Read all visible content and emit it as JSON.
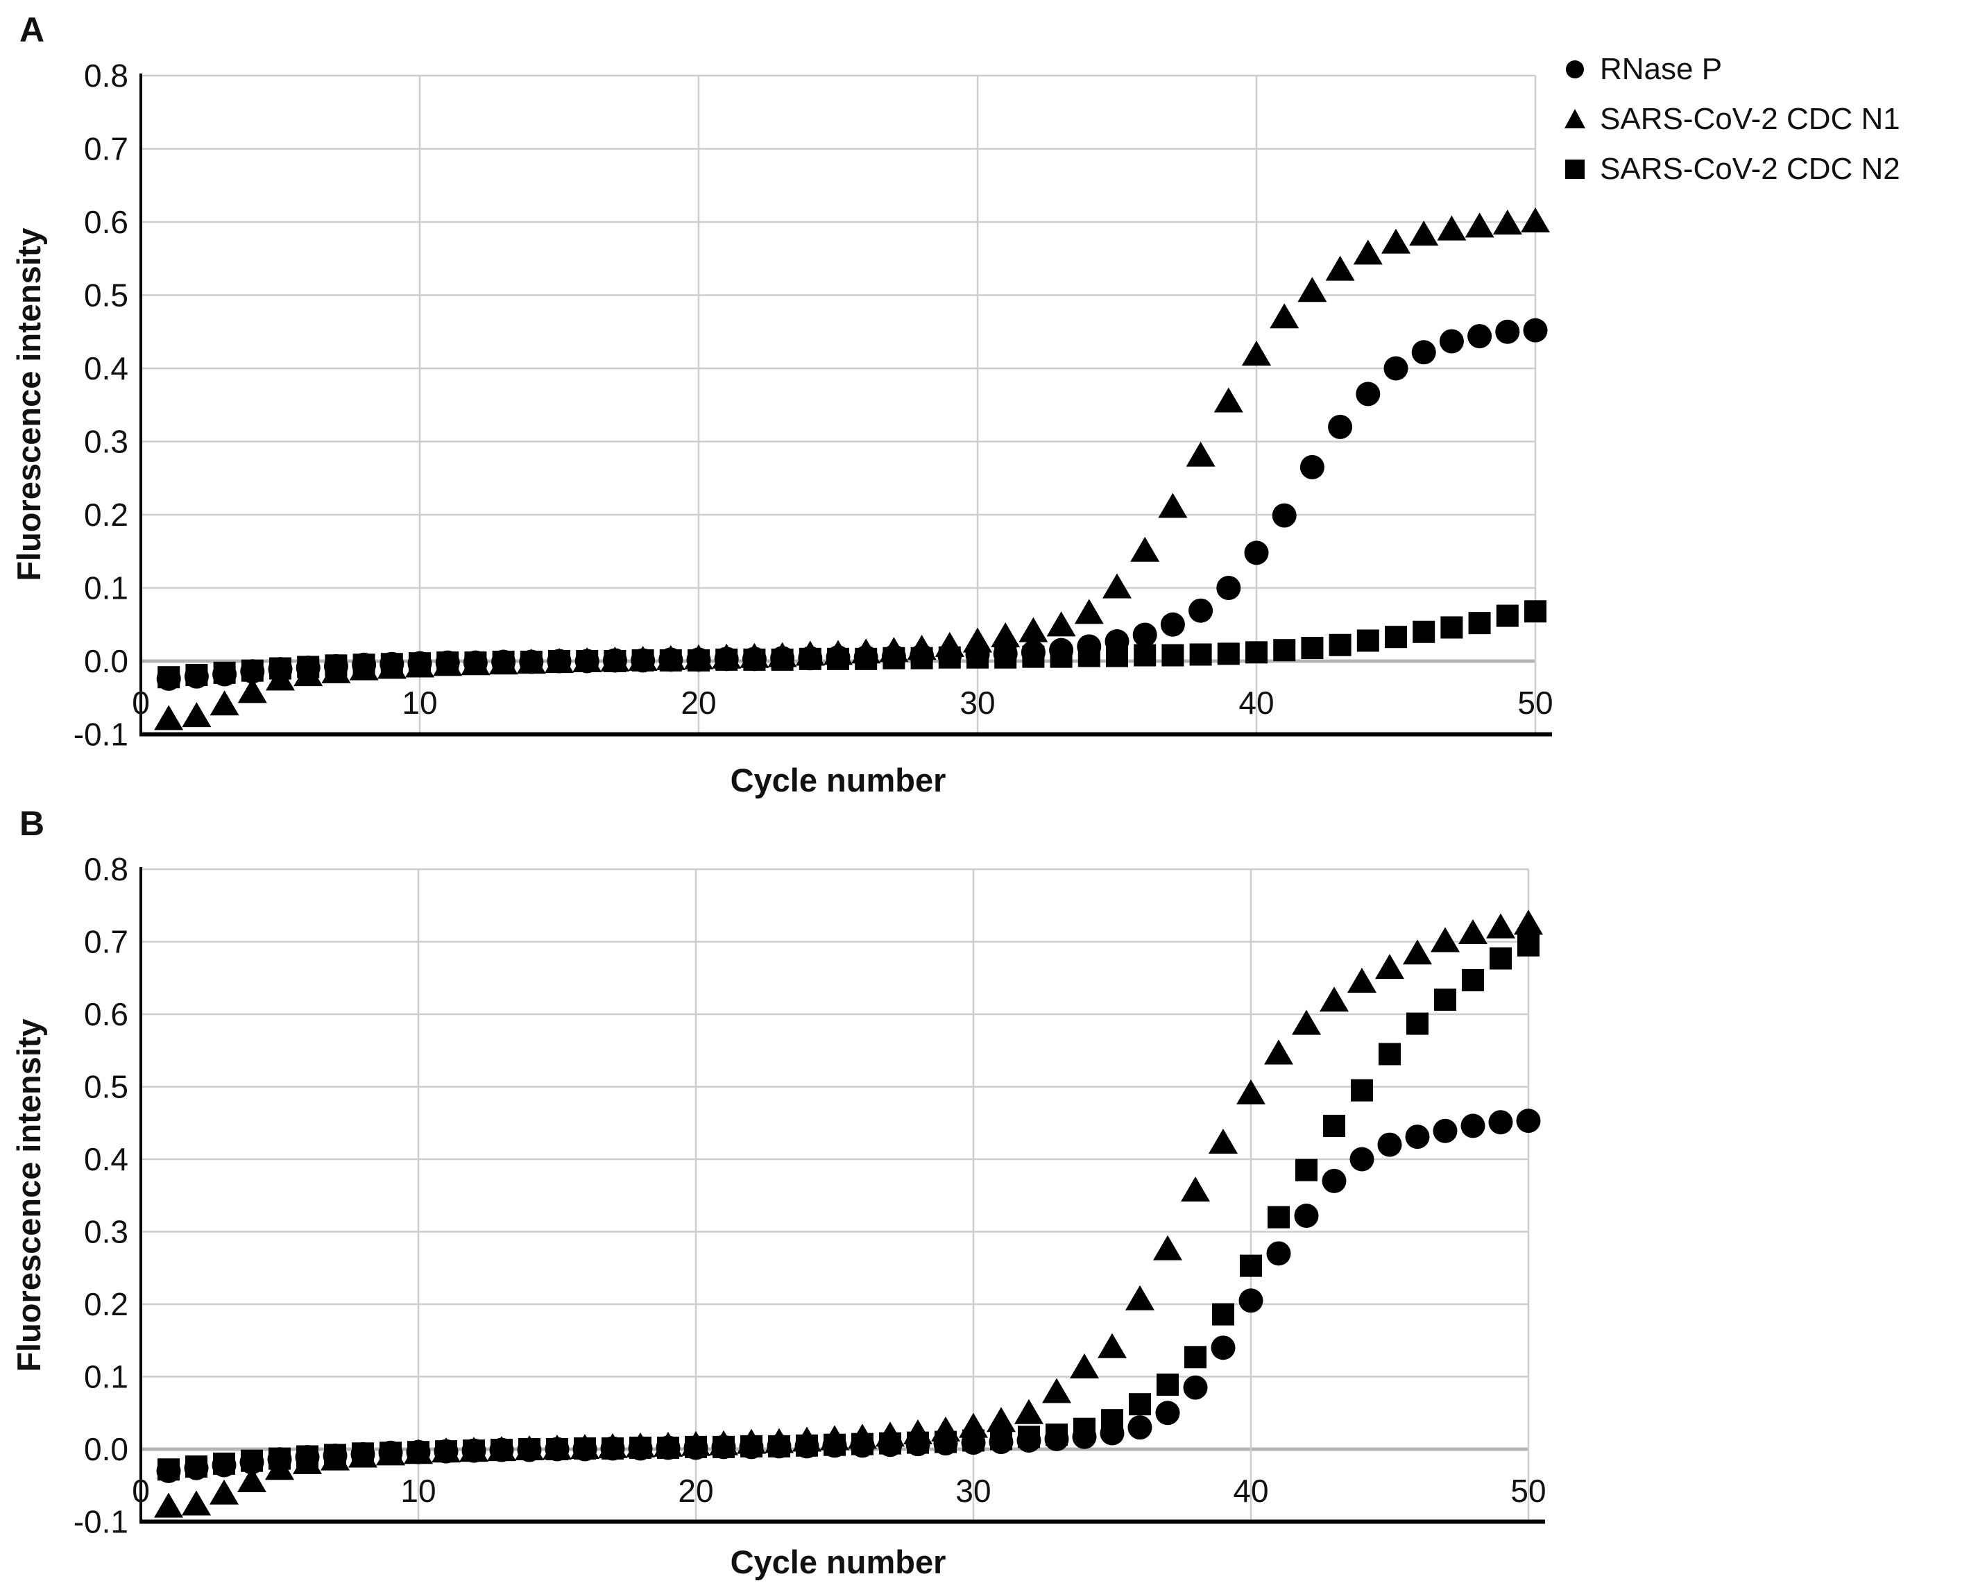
{
  "figure": {
    "background": "#ffffff",
    "marker_color": "#000000",
    "grid_color": "#cdcdcd",
    "zero_line_color": "#b4b4b4",
    "axis_color": "#000000",
    "panels": [
      {
        "letter": "A"
      },
      {
        "letter": "B"
      }
    ],
    "legend": {
      "position": "top-right-outside",
      "items": [
        {
          "marker": "circle",
          "label": "RNase P"
        },
        {
          "marker": "triangle",
          "label": "SARS-CoV-2 CDC N1"
        },
        {
          "marker": "square",
          "label": "SARS-CoV-2 CDC N2"
        }
      ]
    }
  },
  "chart_data": [
    {
      "type": "scatter",
      "panel": "A",
      "title": "",
      "xlabel": "Cycle number",
      "ylabel": "Fluorescence intensity",
      "xlim": [
        0,
        50
      ],
      "ylim": [
        -0.1,
        0.8
      ],
      "grid": true,
      "x_ticks": [
        "0",
        "10",
        "20",
        "30",
        "40",
        "50"
      ],
      "y_ticks": [
        "0.8",
        "0.7",
        "0.6",
        "0.5",
        "0.4",
        "0.3",
        "0.2",
        "0.1",
        "0.0",
        "-0.1"
      ],
      "x": [
        1,
        2,
        3,
        4,
        5,
        6,
        7,
        8,
        9,
        10,
        11,
        12,
        13,
        14,
        15,
        16,
        17,
        18,
        19,
        20,
        21,
        22,
        23,
        24,
        25,
        26,
        27,
        28,
        29,
        30,
        31,
        32,
        33,
        34,
        35,
        36,
        37,
        38,
        39,
        40,
        41,
        42,
        43,
        44,
        45,
        46,
        47,
        48,
        49,
        50
      ],
      "series": [
        {
          "name": "RNase P",
          "marker": "circle",
          "values": [
            -0.024,
            -0.021,
            -0.018,
            -0.014,
            -0.011,
            -0.009,
            -0.007,
            -0.005,
            -0.004,
            -0.003,
            -0.002,
            -0.002,
            -0.001,
            -0.001,
            0.0,
            0.0,
            0.001,
            0.001,
            0.002,
            0.002,
            0.003,
            0.003,
            0.004,
            0.004,
            0.005,
            0.005,
            0.006,
            0.007,
            0.008,
            0.009,
            0.01,
            0.012,
            0.015,
            0.02,
            0.027,
            0.036,
            0.05,
            0.069,
            0.1,
            0.148,
            0.199,
            0.265,
            0.32,
            0.365,
            0.4,
            0.422,
            0.437,
            0.444,
            0.45,
            0.452
          ]
        },
        {
          "name": "SARS-CoV-2 CDC N1",
          "marker": "triangle",
          "values": [
            -0.08,
            -0.076,
            -0.06,
            -0.043,
            -0.026,
            -0.02,
            -0.016,
            -0.012,
            -0.01,
            -0.008,
            -0.006,
            -0.005,
            -0.004,
            -0.003,
            -0.002,
            -0.001,
            0.0,
            0.001,
            0.002,
            0.003,
            0.004,
            0.005,
            0.006,
            0.008,
            0.009,
            0.011,
            0.013,
            0.016,
            0.02,
            0.026,
            0.033,
            0.04,
            0.048,
            0.065,
            0.1,
            0.15,
            0.21,
            0.28,
            0.354,
            0.418,
            0.469,
            0.505,
            0.534,
            0.556,
            0.571,
            0.582,
            0.589,
            0.593,
            0.597,
            0.6
          ]
        },
        {
          "name": "SARS-CoV-2 CDC N2",
          "marker": "square",
          "values": [
            -0.022,
            -0.019,
            -0.016,
            -0.013,
            -0.01,
            -0.008,
            -0.006,
            -0.005,
            -0.004,
            -0.003,
            -0.002,
            -0.002,
            -0.001,
            -0.001,
            0.0,
            0.0,
            0.0,
            0.001,
            0.001,
            0.001,
            0.002,
            0.002,
            0.002,
            0.003,
            0.003,
            0.003,
            0.004,
            0.004,
            0.005,
            0.005,
            0.005,
            0.006,
            0.006,
            0.007,
            0.007,
            0.008,
            0.008,
            0.009,
            0.01,
            0.012,
            0.015,
            0.018,
            0.022,
            0.028,
            0.033,
            0.04,
            0.046,
            0.052,
            0.062,
            0.068
          ]
        }
      ]
    },
    {
      "type": "scatter",
      "panel": "B",
      "title": "",
      "xlabel": "Cycle number",
      "ylabel": "Fluorescence intensity",
      "xlim": [
        0,
        50
      ],
      "ylim": [
        -0.1,
        0.8
      ],
      "grid": true,
      "x_ticks": [
        "0",
        "10",
        "20",
        "30",
        "40",
        "50"
      ],
      "y_ticks": [
        "0.8",
        "0.7",
        "0.6",
        "0.5",
        "0.4",
        "0.3",
        "0.2",
        "0.1",
        "0.0",
        "-0.1"
      ],
      "x": [
        1,
        2,
        3,
        4,
        5,
        6,
        7,
        8,
        9,
        10,
        11,
        12,
        13,
        14,
        15,
        16,
        17,
        18,
        19,
        20,
        21,
        22,
        23,
        24,
        25,
        26,
        27,
        28,
        29,
        30,
        31,
        32,
        33,
        34,
        35,
        36,
        37,
        38,
        39,
        40,
        41,
        42,
        43,
        44,
        45,
        46,
        47,
        48,
        49,
        50
      ],
      "series": [
        {
          "name": "RNase P",
          "marker": "circle",
          "values": [
            -0.03,
            -0.026,
            -0.022,
            -0.018,
            -0.014,
            -0.011,
            -0.009,
            -0.007,
            -0.005,
            -0.004,
            -0.003,
            -0.002,
            -0.001,
            -0.001,
            0.0,
            0.0,
            0.001,
            0.001,
            0.002,
            0.002,
            0.003,
            0.003,
            0.004,
            0.004,
            0.005,
            0.005,
            0.006,
            0.007,
            0.008,
            0.009,
            0.01,
            0.012,
            0.014,
            0.017,
            0.022,
            0.03,
            0.05,
            0.085,
            0.14,
            0.205,
            0.27,
            0.322,
            0.37,
            0.4,
            0.42,
            0.431,
            0.439,
            0.446,
            0.451,
            0.453
          ]
        },
        {
          "name": "SARS-CoV-2 CDC N1",
          "marker": "triangle",
          "values": [
            -0.08,
            -0.077,
            -0.062,
            -0.045,
            -0.028,
            -0.02,
            -0.015,
            -0.011,
            -0.008,
            -0.006,
            -0.004,
            -0.003,
            -0.002,
            -0.001,
            0.0,
            0.001,
            0.002,
            0.003,
            0.004,
            0.005,
            0.006,
            0.008,
            0.009,
            0.011,
            0.013,
            0.015,
            0.018,
            0.021,
            0.025,
            0.03,
            0.038,
            0.049,
            0.078,
            0.112,
            0.14,
            0.206,
            0.275,
            0.356,
            0.422,
            0.49,
            0.545,
            0.586,
            0.618,
            0.644,
            0.663,
            0.683,
            0.7,
            0.711,
            0.719,
            0.724
          ]
        },
        {
          "name": "SARS-CoV-2 CDC N2",
          "marker": "square",
          "values": [
            -0.028,
            -0.024,
            -0.02,
            -0.016,
            -0.013,
            -0.01,
            -0.008,
            -0.006,
            -0.005,
            -0.004,
            -0.003,
            -0.002,
            -0.001,
            0.0,
            0.0,
            0.001,
            0.001,
            0.002,
            0.002,
            0.003,
            0.003,
            0.004,
            0.004,
            0.005,
            0.006,
            0.007,
            0.008,
            0.009,
            0.01,
            0.012,
            0.014,
            0.017,
            0.02,
            0.028,
            0.04,
            0.062,
            0.089,
            0.127,
            0.186,
            0.253,
            0.32,
            0.385,
            0.446,
            0.495,
            0.545,
            0.587,
            0.62,
            0.647,
            0.677,
            0.695
          ]
        }
      ]
    }
  ]
}
